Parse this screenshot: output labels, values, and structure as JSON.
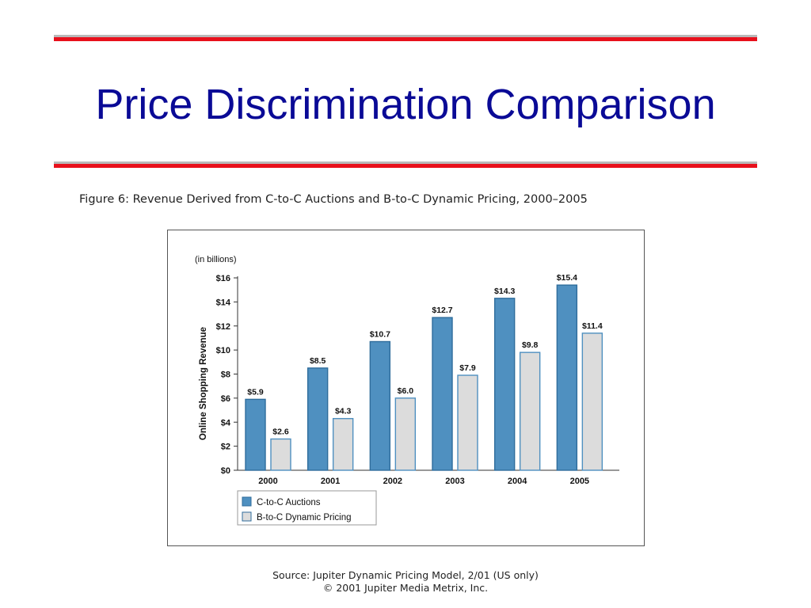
{
  "slide": {
    "title": "Price Discrimination Comparison",
    "figure_caption": "Figure 6: Revenue Derived from C-to-C Auctions and B-to-C Dynamic Pricing, 2000–2005",
    "source_line1": "Source: Jupiter Dynamic Pricing Model, 2/01 (US only)",
    "source_line2": "© 2001 Jupiter Media Metrix, Inc.",
    "colors": {
      "title": "#0a0a96",
      "rule_red": "#e8101c",
      "rule_grey": "#b9b9b9"
    }
  },
  "chart_data": {
    "type": "bar",
    "units_note": "(in billions)",
    "ylabel": "Online Shopping Revenue",
    "xlabel": "",
    "categories": [
      "2000",
      "2001",
      "2002",
      "2003",
      "2004",
      "2005"
    ],
    "series": [
      {
        "name": "C-to-C Auctions",
        "color": "#4f90c0",
        "values": [
          5.9,
          8.5,
          10.7,
          12.7,
          14.3,
          15.4
        ],
        "labels": [
          "$5.9",
          "$8.5",
          "$10.7",
          "$12.7",
          "$14.3",
          "$15.4"
        ]
      },
      {
        "name": "B-to-C Dynamic Pricing",
        "color": "#dcdcdc",
        "values": [
          2.6,
          4.3,
          6.0,
          7.9,
          9.8,
          11.4
        ],
        "labels": [
          "$2.6",
          "$4.3",
          "$6.0",
          "$7.9",
          "$9.8",
          "$11.4"
        ]
      }
    ],
    "ylim": [
      0,
      16
    ],
    "yticks": [
      0,
      2,
      4,
      6,
      8,
      10,
      12,
      14,
      16
    ],
    "ytick_labels": [
      "$0",
      "$2",
      "$4",
      "$6",
      "$8",
      "$10",
      "$12",
      "$14",
      "$16"
    ],
    "grid": false,
    "legend_position": "bottom-left"
  }
}
